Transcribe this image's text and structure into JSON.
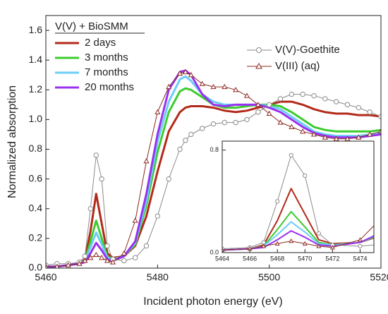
{
  "chart_data": {
    "type": "line",
    "x_label": "Incident photon energy (eV)",
    "y_label": "Normalized absorption",
    "xlim": [
      5460,
      5520
    ],
    "xticks": [
      5460,
      5480,
      5500,
      5520
    ],
    "ylim": [
      0,
      1.7
    ],
    "yticks": [
      {
        "value": 0,
        "label": "0.0"
      },
      0.2,
      0.4,
      0.6,
      0.8,
      {
        "value": 1,
        "label": "1.0"
      },
      1.2,
      1.4,
      1.6
    ],
    "legend_title": "V(V) + BioSMM",
    "x": [
      5460,
      5462,
      5464,
      5466,
      5467,
      5468,
      5469,
      5470,
      5471,
      5472,
      5474,
      5476,
      5478,
      5480,
      5482,
      5484,
      5485,
      5486,
      5488,
      5490,
      5492,
      5494,
      5496,
      5498,
      5500,
      5502,
      5504,
      5506,
      5508,
      5510,
      5512,
      5514,
      5516,
      5518,
      5520
    ],
    "series": [
      {
        "name": "2 days",
        "color": "#b22a1a",
        "marker": "none",
        "values": [
          0.01,
          0.01,
          0.02,
          0.03,
          0.06,
          0.25,
          0.5,
          0.3,
          0.1,
          0.07,
          0.08,
          0.15,
          0.35,
          0.65,
          0.92,
          1.05,
          1.08,
          1.09,
          1.09,
          1.08,
          1.06,
          1.05,
          1.06,
          1.08,
          1.1,
          1.12,
          1.12,
          1.1,
          1.07,
          1.05,
          1.04,
          1.04,
          1.03,
          1.03,
          1.02
        ]
      },
      {
        "name": "3 months",
        "color": "#3ccc2e",
        "marker": "none",
        "values": [
          0.01,
          0.01,
          0.02,
          0.03,
          0.05,
          0.18,
          0.32,
          0.2,
          0.08,
          0.06,
          0.08,
          0.16,
          0.42,
          0.78,
          1.05,
          1.19,
          1.21,
          1.2,
          1.15,
          1.1,
          1.08,
          1.08,
          1.09,
          1.1,
          1.1,
          1.09,
          1.05,
          1.0,
          0.95,
          0.93,
          0.92,
          0.92,
          0.92,
          0.92,
          0.93
        ]
      },
      {
        "name": "7 months",
        "color": "#6ccdf5",
        "marker": "none",
        "values": [
          0.01,
          0.01,
          0.02,
          0.03,
          0.05,
          0.14,
          0.24,
          0.16,
          0.07,
          0.06,
          0.08,
          0.17,
          0.45,
          0.85,
          1.12,
          1.27,
          1.29,
          1.26,
          1.17,
          1.12,
          1.1,
          1.1,
          1.1,
          1.1,
          1.09,
          1.07,
          1.02,
          0.97,
          0.92,
          0.9,
          0.89,
          0.89,
          0.89,
          0.9,
          0.91
        ]
      },
      {
        "name": "20 months",
        "color": "#9b30f0",
        "marker": "none",
        "values": [
          0.01,
          0.01,
          0.02,
          0.03,
          0.04,
          0.1,
          0.17,
          0.12,
          0.06,
          0.05,
          0.08,
          0.18,
          0.5,
          0.9,
          1.2,
          1.32,
          1.33,
          1.3,
          1.17,
          1.1,
          1.09,
          1.1,
          1.1,
          1.1,
          1.08,
          1.05,
          1.0,
          0.95,
          0.91,
          0.89,
          0.88,
          0.88,
          0.88,
          0.89,
          0.9
        ]
      },
      {
        "name": "V(V)-Goethite",
        "color": "#8a8a8a",
        "marker": "circle",
        "values": [
          0.02,
          0.03,
          0.03,
          0.04,
          0.08,
          0.4,
          0.76,
          0.6,
          0.15,
          0.06,
          0.05,
          0.07,
          0.15,
          0.35,
          0.6,
          0.8,
          0.86,
          0.9,
          0.94,
          0.97,
          0.98,
          0.98,
          1.0,
          1.05,
          1.1,
          1.14,
          1.17,
          1.17,
          1.16,
          1.14,
          1.12,
          1.1,
          1.08,
          1.05,
          1.02
        ]
      },
      {
        "name": "V(III) (aq)",
        "color": "#8b2a20",
        "marker": "triangle",
        "values": [
          0.01,
          0.01,
          0.02,
          0.03,
          0.05,
          0.07,
          0.09,
          0.07,
          0.05,
          0.04,
          0.1,
          0.32,
          0.72,
          1.05,
          1.22,
          1.31,
          1.32,
          1.3,
          1.24,
          1.22,
          1.22,
          1.2,
          1.16,
          1.1,
          1.04,
          0.98,
          0.95,
          0.92,
          0.9,
          0.88,
          0.87,
          0.87,
          0.88,
          0.9,
          0.92
        ]
      }
    ],
    "inset": {
      "xlim": [
        5464,
        5475
      ],
      "xticks": [
        5464,
        5466,
        5468,
        5470,
        5472,
        5474
      ],
      "ylim": [
        0,
        0.87
      ],
      "yticks": [
        {
          "value": 0,
          "label": "0.0"
        },
        {
          "value": 0.8,
          "label": "0.8"
        }
      ]
    }
  }
}
